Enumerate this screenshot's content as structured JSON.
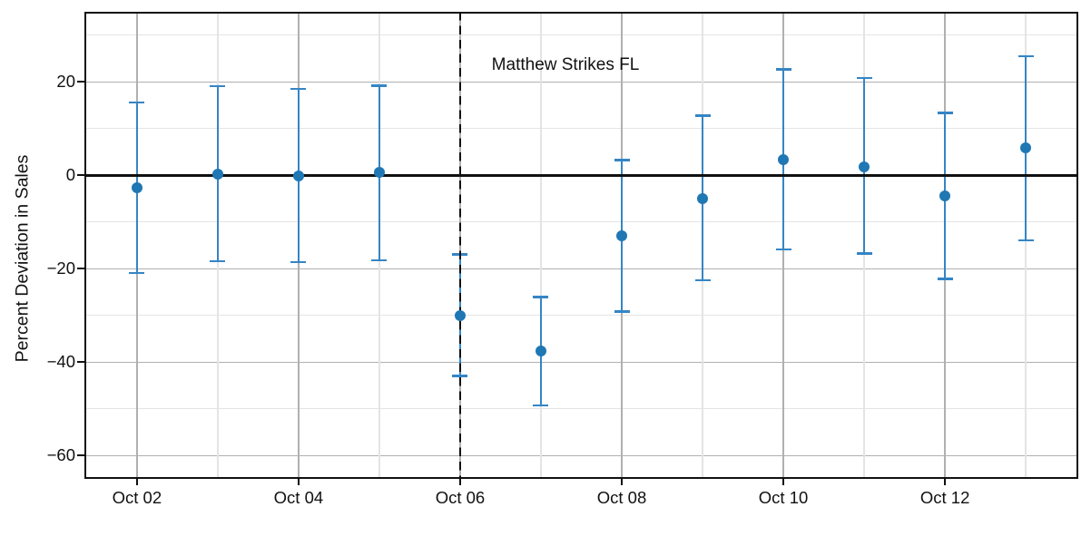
{
  "chart_data": {
    "type": "scatter",
    "subtype": "errorbar",
    "title": "",
    "xlabel": "",
    "ylabel": "Percent Deviation in Sales",
    "categories": [
      "Oct 02",
      "Oct 03",
      "Oct 04",
      "Oct 05",
      "Oct 06",
      "Oct 07",
      "Oct 08",
      "Oct 09",
      "Oct 10",
      "Oct 11",
      "Oct 12",
      "Oct 13"
    ],
    "series": [
      {
        "name": "Percent deviation in sales (point estimate)",
        "values": [
          -2.6,
          0.3,
          -0.2,
          0.7,
          -30.0,
          -37.6,
          -12.9,
          -5.0,
          3.4,
          1.8,
          -4.5,
          5.8
        ],
        "ci_upper": [
          15.6,
          19.1,
          18.5,
          19.2,
          -16.9,
          -26.1,
          3.2,
          12.8,
          22.7,
          20.8,
          13.4,
          25.5
        ],
        "ci_lower": [
          -20.9,
          -18.4,
          -18.6,
          -18.2,
          -43.0,
          -49.3,
          -29.2,
          -22.5,
          -15.9,
          -16.8,
          -22.2,
          -13.9
        ]
      }
    ],
    "x_major_tick_labels": [
      "Oct 02",
      "Oct 04",
      "Oct 06",
      "Oct 08",
      "Oct 10",
      "Oct 12"
    ],
    "x_major_tick_indices": [
      0,
      2,
      4,
      6,
      8,
      10
    ],
    "y_major_ticks": [
      20,
      0,
      -20,
      -40,
      -60
    ],
    "y_minor_gridlines": [
      30,
      10,
      -10,
      -30,
      -50
    ],
    "ylim": [
      -65,
      35
    ],
    "xlim": [
      -0.65,
      11.65
    ],
    "grid": true,
    "legend_position": "none",
    "zero_line_y": 0,
    "event_line": {
      "x_index": 4,
      "at_label": "Oct 06",
      "style": "dashed"
    },
    "annotation": {
      "text": "Matthew Strikes FL",
      "x_index": 4.39,
      "y_value": 23.5
    },
    "colors": {
      "marker": "#1f77b4",
      "error_line": "#3585c5",
      "major_grid": "#b0b0b0",
      "minor_grid": "#e4e4e4",
      "zero_line": "#111111",
      "event_line": "#111111",
      "axis_text": "#111111"
    }
  }
}
